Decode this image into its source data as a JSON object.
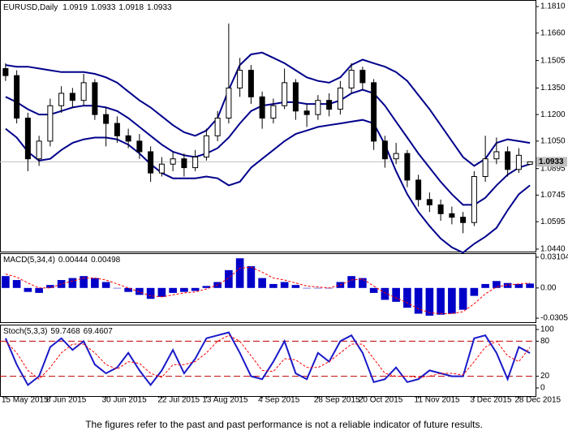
{
  "chart_data": [
    {
      "type": "candlestick",
      "title": "EURUSD,Daily",
      "categories": [
        "15 May 2015",
        null,
        null,
        null,
        "8 Jun 2015",
        null,
        null,
        null,
        null,
        "30 Jun 2015",
        null,
        null,
        null,
        null,
        "22 Jul 2015",
        null,
        null,
        null,
        "13 Aug 2015",
        null,
        null,
        null,
        null,
        "4 Sep 2015",
        null,
        null,
        null,
        null,
        "28 Sep 2015",
        null,
        null,
        null,
        "20 Oct 2015",
        null,
        null,
        null,
        null,
        "11 Nov 2015",
        null,
        null,
        null,
        null,
        "3 Dec 2015",
        null,
        null,
        null,
        "28 Dec 2015",
        null
      ],
      "candles": [
        [
          1.146,
          1.149,
          1.139,
          1.142
        ],
        [
          1.142,
          1.145,
          1.115,
          1.118
        ],
        [
          1.118,
          1.121,
          1.088,
          1.095
        ],
        [
          1.095,
          1.108,
          1.091,
          1.105
        ],
        [
          1.105,
          1.129,
          1.102,
          1.125
        ],
        [
          1.125,
          1.136,
          1.121,
          1.132
        ],
        [
          1.132,
          1.135,
          1.124,
          1.128
        ],
        [
          1.128,
          1.143,
          1.125,
          1.138
        ],
        [
          1.138,
          1.14,
          1.117,
          1.12
        ],
        [
          1.12,
          1.124,
          1.102,
          1.115
        ],
        [
          1.115,
          1.119,
          1.104,
          1.108
        ],
        [
          1.108,
          1.112,
          1.101,
          1.105
        ],
        [
          1.105,
          1.109,
          1.095,
          1.099
        ],
        [
          1.099,
          1.102,
          1.082,
          1.087
        ],
        [
          1.087,
          1.096,
          1.085,
          1.092
        ],
        [
          1.092,
          1.099,
          1.088,
          1.095
        ],
        [
          1.095,
          1.098,
          1.085,
          1.09
        ],
        [
          1.09,
          1.1,
          1.088,
          1.096
        ],
        [
          1.096,
          1.112,
          1.094,
          1.108
        ],
        [
          1.108,
          1.122,
          1.105,
          1.118
        ],
        [
          1.118,
          1.1714,
          1.115,
          1.135
        ],
        [
          1.135,
          1.152,
          1.13,
          1.145
        ],
        [
          1.145,
          1.148,
          1.126,
          1.13
        ],
        [
          1.13,
          1.133,
          1.112,
          1.118
        ],
        [
          1.118,
          1.129,
          1.115,
          1.125
        ],
        [
          1.125,
          1.146,
          1.123,
          1.138
        ],
        [
          1.138,
          1.14,
          1.117,
          1.122
        ],
        [
          1.122,
          1.126,
          1.113,
          1.12
        ],
        [
          1.12,
          1.131,
          1.117,
          1.128
        ],
        [
          1.128,
          1.132,
          1.119,
          1.123
        ],
        [
          1.123,
          1.139,
          1.12,
          1.135
        ],
        [
          1.135,
          1.149,
          1.132,
          1.145
        ],
        [
          1.145,
          1.147,
          1.134,
          1.138
        ],
        [
          1.138,
          1.14,
          1.1,
          1.105
        ],
        [
          1.105,
          1.108,
          1.09,
          1.095
        ],
        [
          1.095,
          1.104,
          1.092,
          1.098
        ],
        [
          1.098,
          1.1,
          1.079,
          1.083
        ],
        [
          1.083,
          1.086,
          1.068,
          1.072
        ],
        [
          1.072,
          1.076,
          1.065,
          1.069
        ],
        [
          1.069,
          1.072,
          1.06,
          1.064
        ],
        [
          1.064,
          1.068,
          1.058,
          1.062
        ],
        [
          1.062,
          1.065,
          1.053,
          1.059
        ],
        [
          1.059,
          1.088,
          1.057,
          1.085
        ],
        [
          1.085,
          1.108,
          1.082,
          1.095
        ],
        [
          1.095,
          1.107,
          1.092,
          1.099
        ],
        [
          1.099,
          1.102,
          1.085,
          1.089
        ],
        [
          1.089,
          1.101,
          1.087,
          1.097
        ],
        [
          1.0919,
          1.0933,
          1.0918,
          1.0933
        ]
      ],
      "up_color": "#ffffff",
      "down_color": "#000000",
      "candle_outline": "#000000",
      "current_price_color": "#c0c0c0",
      "bands": [
        {
          "color": "#00008b",
          "values": [
            1.148,
            1.147,
            1.147,
            1.146,
            1.145,
            1.144,
            1.144,
            1.144,
            1.143,
            1.141,
            1.138,
            1.133,
            1.128,
            1.124,
            1.119,
            1.114,
            1.11,
            1.108,
            1.111,
            1.118,
            1.134,
            1.148,
            1.154,
            1.155,
            1.152,
            1.149,
            1.145,
            1.141,
            1.139,
            1.138,
            1.141,
            1.148,
            1.151,
            1.149,
            1.147,
            1.144,
            1.139,
            1.131,
            1.123,
            1.114,
            1.105,
            1.096,
            1.091,
            1.095,
            1.104,
            1.106,
            1.105,
            1.104
          ]
        },
        {
          "color": "#00008b",
          "values": [
            1.13,
            1.127,
            1.123,
            1.12,
            1.12,
            1.122,
            1.124,
            1.125,
            1.125,
            1.124,
            1.122,
            1.118,
            1.113,
            1.108,
            1.103,
            1.099,
            1.097,
            1.096,
            1.098,
            1.101,
            1.107,
            1.115,
            1.122,
            1.125,
            1.126,
            1.127,
            1.127,
            1.126,
            1.126,
            1.126,
            1.128,
            1.132,
            1.134,
            1.132,
            1.125,
            1.116,
            1.107,
            1.098,
            1.09,
            1.082,
            1.075,
            1.069,
            1.069,
            1.073,
            1.08,
            1.086,
            1.09,
            1.092
          ]
        },
        {
          "color": "#00008b",
          "values": [
            1.112,
            1.107,
            1.099,
            1.094,
            1.095,
            1.1,
            1.104,
            1.106,
            1.107,
            1.107,
            1.106,
            1.103,
            1.098,
            1.092,
            1.087,
            1.084,
            1.084,
            1.084,
            1.085,
            1.084,
            1.08,
            1.082,
            1.09,
            1.095,
            1.1,
            1.105,
            1.109,
            1.111,
            1.113,
            1.114,
            1.115,
            1.116,
            1.117,
            1.115,
            1.103,
            1.088,
            1.075,
            1.065,
            1.057,
            1.05,
            1.045,
            1.042,
            1.047,
            1.051,
            1.056,
            1.066,
            1.075,
            1.08
          ]
        }
      ],
      "ylim": [
        1.0426,
        1.1847
      ],
      "yticks": [
        {
          "value": 1.181,
          "label": "1.1810"
        },
        {
          "value": 1.166,
          "label": "1.1660"
        },
        1.1505,
        {
          "value": 1.135,
          "label": "1.1350"
        },
        {
          "value": 1.12,
          "label": "1.1200"
        },
        {
          "value": 1.105,
          "label": "1.1050"
        },
        1.0895,
        1.0745,
        1.0595,
        {
          "value": 1.044,
          "label": "1.0440"
        }
      ]
    },
    {
      "type": "macd",
      "title": "MACD(5,34,4)",
      "series": [
        {
          "type": "bar",
          "color": "#0000c8",
          "values": [
            0.012,
            0.008,
            -0.004,
            -0.005,
            0.003,
            0.008,
            0.01,
            0.012,
            0.01,
            0.006,
            0.0,
            -0.004,
            -0.007,
            -0.011,
            -0.009,
            -0.005,
            -0.004,
            -0.003,
            0.002,
            0.006,
            0.018,
            0.03,
            0.022,
            0.01,
            0.004,
            0.006,
            0.003,
            0.0,
            0.0,
            0.0,
            0.006,
            0.012,
            0.01,
            -0.005,
            -0.012,
            -0.014,
            -0.02,
            -0.026,
            -0.028,
            -0.027,
            -0.026,
            -0.022,
            -0.008,
            0.004,
            0.007,
            0.005,
            0.004,
            0.00444
          ]
        },
        {
          "type": "line",
          "color": "#ff0000",
          "dashed": true,
          "values": [
            0.014,
            0.011,
            0.005,
            0.0,
            0.0,
            0.004,
            0.007,
            0.01,
            0.01,
            0.008,
            0.004,
            0.0,
            -0.004,
            -0.008,
            -0.009,
            -0.007,
            -0.005,
            -0.004,
            -0.001,
            0.003,
            0.01,
            0.02,
            0.021,
            0.016,
            0.01,
            0.008,
            0.005,
            0.002,
            0.001,
            0.0,
            0.003,
            0.008,
            0.009,
            0.002,
            -0.005,
            -0.01,
            -0.015,
            -0.021,
            -0.025,
            -0.026,
            -0.026,
            -0.024,
            -0.016,
            -0.006,
            0.001,
            0.003,
            0.004,
            0.00498
          ]
        }
      ],
      "ylim": [
        -0.0346,
        0.0351
      ],
      "yticks": [
        0.03104,
        {
          "value": 0,
          "label": "0.00"
        },
        -0.03052
      ]
    },
    {
      "type": "stochastic",
      "title": "Stoch(5,3,3)",
      "series": [
        {
          "type": "line",
          "color": "#1a1ac8",
          "dashed": false,
          "values": [
            85,
            40,
            5,
            20,
            70,
            85,
            65,
            80,
            40,
            25,
            35,
            60,
            30,
            5,
            30,
            65,
            25,
            50,
            85,
            90,
            95,
            60,
            20,
            15,
            45,
            80,
            25,
            15,
            60,
            45,
            80,
            90,
            60,
            10,
            15,
            35,
            10,
            15,
            30,
            25,
            20,
            20,
            85,
            90,
            60,
            15,
            70,
            59.7468
          ]
        },
        {
          "type": "line",
          "color": "#ff0000",
          "dashed": true,
          "values": [
            80,
            60,
            30,
            15,
            35,
            60,
            75,
            75,
            60,
            40,
            32,
            45,
            42,
            25,
            18,
            40,
            40,
            45,
            60,
            80,
            90,
            80,
            55,
            30,
            28,
            50,
            48,
            35,
            35,
            45,
            60,
            75,
            75,
            50,
            25,
            20,
            20,
            18,
            20,
            25,
            25,
            22,
            45,
            70,
            80,
            55,
            45,
            69.4607
          ]
        }
      ],
      "levels": [
        80,
        20
      ],
      "level_color": "#c00000",
      "ylim": [
        -13.9,
        108.3
      ],
      "yticks": [
        100,
        80,
        20,
        0
      ]
    }
  ],
  "footer": "The figures refer to the past and past performance is not a reliable indicator of future results."
}
